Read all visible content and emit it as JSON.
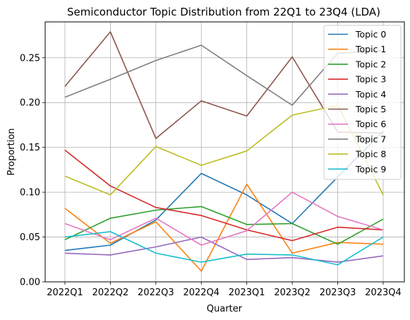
{
  "chart_data": {
    "type": "line",
    "title": "Semiconductor Topic Distribution from 22Q1 to 23Q4 (LDA)",
    "xlabel": "Quarter",
    "ylabel": "Proportion",
    "x": [
      "2022Q1",
      "2022Q2",
      "2022Q3",
      "2022Q4",
      "2023Q1",
      "2023Q2",
      "2023Q3",
      "2023Q4"
    ],
    "ylim": [
      0,
      0.29
    ],
    "yticks": [
      "0.00",
      "0.05",
      "0.10",
      "0.15",
      "0.20",
      "0.25"
    ],
    "grid": true,
    "legend_position": "upper-right",
    "series": [
      {
        "name": "Topic 0",
        "color": "#1f77b4",
        "values": [
          0.035,
          0.041,
          0.069,
          0.121,
          0.097,
          0.065,
          0.117,
          0.168
        ]
      },
      {
        "name": "Topic 1",
        "color": "#ff7f0e",
        "values": [
          0.082,
          0.043,
          0.067,
          0.012,
          0.109,
          0.032,
          0.044,
          0.042
        ]
      },
      {
        "name": "Topic 2",
        "color": "#2ca02c",
        "values": [
          0.047,
          0.071,
          0.08,
          0.084,
          0.064,
          0.065,
          0.042,
          0.07
        ]
      },
      {
        "name": "Topic 3",
        "color": "#d62728",
        "values": [
          0.147,
          0.107,
          0.083,
          0.074,
          0.058,
          0.046,
          0.061,
          0.058
        ]
      },
      {
        "name": "Topic 4",
        "color": "#9467bd",
        "values": [
          0.032,
          0.03,
          0.039,
          0.05,
          0.025,
          0.027,
          0.022,
          0.029
        ]
      },
      {
        "name": "Topic 5",
        "color": "#8c564b",
        "values": [
          0.218,
          0.279,
          0.16,
          0.202,
          0.185,
          0.251,
          0.167,
          0.166
        ]
      },
      {
        "name": "Topic 6",
        "color": "#e377c2",
        "values": [
          0.065,
          0.047,
          0.071,
          0.041,
          0.057,
          0.1,
          0.073,
          0.058
        ]
      },
      {
        "name": "Topic 7",
        "color": "#7f7f7f",
        "values": [
          0.206,
          0.226,
          0.247,
          0.264,
          0.23,
          0.197,
          0.255,
          0.258
        ]
      },
      {
        "name": "Topic 8",
        "color": "#bcbd22",
        "values": [
          0.118,
          0.097,
          0.151,
          0.13,
          0.146,
          0.186,
          0.197,
          0.097
        ]
      },
      {
        "name": "Topic 9",
        "color": "#17becf",
        "values": [
          0.05,
          0.056,
          0.032,
          0.022,
          0.031,
          0.03,
          0.019,
          0.05
        ]
      }
    ]
  }
}
